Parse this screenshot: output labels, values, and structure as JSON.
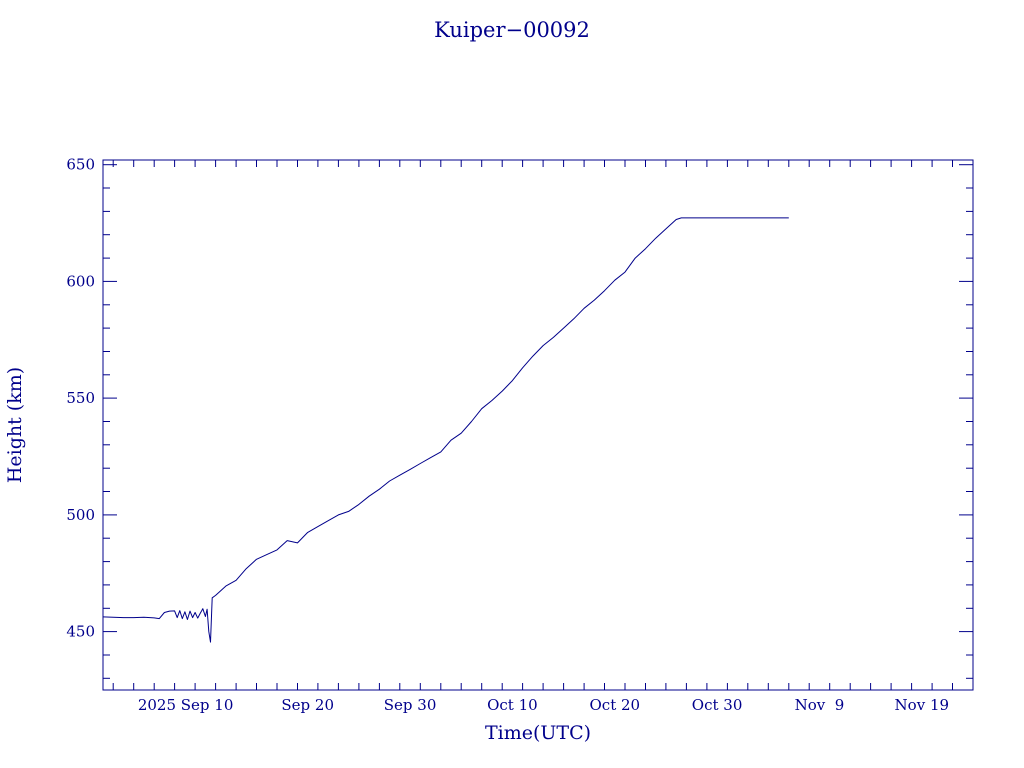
{
  "chart_data": {
    "type": "line",
    "title": "Kuiper−00092",
    "xlabel": "Time(UTC)",
    "ylabel": "Height (km)",
    "x_axis": "date",
    "xlim": [
      "2025-08-31",
      "2025-11-24"
    ],
    "ylim": [
      425,
      652
    ],
    "y_ticks": [
      450,
      500,
      550,
      600,
      650
    ],
    "x_ticks": [
      {
        "date": "2025-09-10",
        "label": "2025 Sep 10"
      },
      {
        "date": "2025-09-20",
        "label": "Sep 20"
      },
      {
        "date": "2025-09-30",
        "label": "Sep 30"
      },
      {
        "date": "2025-10-10",
        "label": "Oct 10"
      },
      {
        "date": "2025-10-20",
        "label": "Oct 20"
      },
      {
        "date": "2025-10-30",
        "label": "Oct 30"
      },
      {
        "date": "2025-11-09",
        "label": "Nov  9"
      },
      {
        "date": "2025-11-19",
        "label": "Nov 19"
      }
    ],
    "grid": false,
    "line_color": "#00008b",
    "series": [
      {
        "points": [
          [
            "2025-08-31",
            456.3
          ],
          [
            "2025-09-02",
            456.0
          ],
          [
            "2025-09-03",
            456.0
          ],
          [
            "2025-09-04",
            456.2
          ],
          [
            "2025-09-05",
            455.9
          ],
          [
            "2025-09-05T12",
            455.6
          ],
          [
            "2025-09-06",
            458.2
          ],
          [
            "2025-09-06T12",
            458.8
          ],
          [
            "2025-09-07",
            458.9
          ],
          [
            "2025-09-07T06",
            456.0
          ],
          [
            "2025-09-07T12",
            459.0
          ],
          [
            "2025-09-07T18",
            455.6
          ],
          [
            "2025-09-08",
            458.5
          ],
          [
            "2025-09-08T06",
            455.2
          ],
          [
            "2025-09-08T12",
            458.8
          ],
          [
            "2025-09-08T18",
            456.0
          ],
          [
            "2025-09-09",
            458.2
          ],
          [
            "2025-09-09T06",
            455.8
          ],
          [
            "2025-09-09T12",
            457.8
          ],
          [
            "2025-09-09T18",
            459.8
          ],
          [
            "2025-09-10",
            456.5
          ],
          [
            "2025-09-10T04",
            459.6
          ],
          [
            "2025-09-10T08",
            450.0
          ],
          [
            "2025-09-10T12",
            445.5
          ],
          [
            "2025-09-10T16",
            464.5
          ],
          [
            "2025-09-11",
            465.5
          ],
          [
            "2025-09-12",
            469.5
          ],
          [
            "2025-09-13",
            472.0
          ],
          [
            "2025-09-14",
            477.0
          ],
          [
            "2025-09-15",
            481.0
          ],
          [
            "2025-09-16",
            483.0
          ],
          [
            "2025-09-17",
            485.0
          ],
          [
            "2025-09-18",
            489.0
          ],
          [
            "2025-09-19",
            488.0
          ],
          [
            "2025-09-20",
            492.5
          ],
          [
            "2025-09-21",
            495.0
          ],
          [
            "2025-09-22",
            497.5
          ],
          [
            "2025-09-23",
            500.0
          ],
          [
            "2025-09-24",
            501.5
          ],
          [
            "2025-09-25",
            504.5
          ],
          [
            "2025-09-26",
            508.0
          ],
          [
            "2025-09-27",
            511.0
          ],
          [
            "2025-09-28",
            514.5
          ],
          [
            "2025-09-29",
            517.0
          ],
          [
            "2025-09-30",
            519.5
          ],
          [
            "2025-10-01",
            522.0
          ],
          [
            "2025-10-02",
            524.5
          ],
          [
            "2025-10-03",
            527.0
          ],
          [
            "2025-10-04",
            532.0
          ],
          [
            "2025-10-05",
            535.0
          ],
          [
            "2025-10-06",
            540.0
          ],
          [
            "2025-10-07",
            545.5
          ],
          [
            "2025-10-08",
            549.0
          ],
          [
            "2025-10-09",
            553.0
          ],
          [
            "2025-10-10",
            557.5
          ],
          [
            "2025-10-11",
            563.0
          ],
          [
            "2025-10-12",
            568.0
          ],
          [
            "2025-10-13",
            572.5
          ],
          [
            "2025-10-14",
            576.0
          ],
          [
            "2025-10-15",
            580.0
          ],
          [
            "2025-10-16",
            584.0
          ],
          [
            "2025-10-17",
            588.5
          ],
          [
            "2025-10-18",
            592.0
          ],
          [
            "2025-10-19",
            596.0
          ],
          [
            "2025-10-20",
            600.5
          ],
          [
            "2025-10-21",
            604.0
          ],
          [
            "2025-10-22",
            610.0
          ],
          [
            "2025-10-23",
            614.0
          ],
          [
            "2025-10-24",
            618.5
          ],
          [
            "2025-10-25",
            622.5
          ],
          [
            "2025-10-26",
            626.5
          ],
          [
            "2025-10-26T12",
            627.2
          ],
          [
            "2025-11-06",
            627.2
          ]
        ]
      }
    ]
  }
}
